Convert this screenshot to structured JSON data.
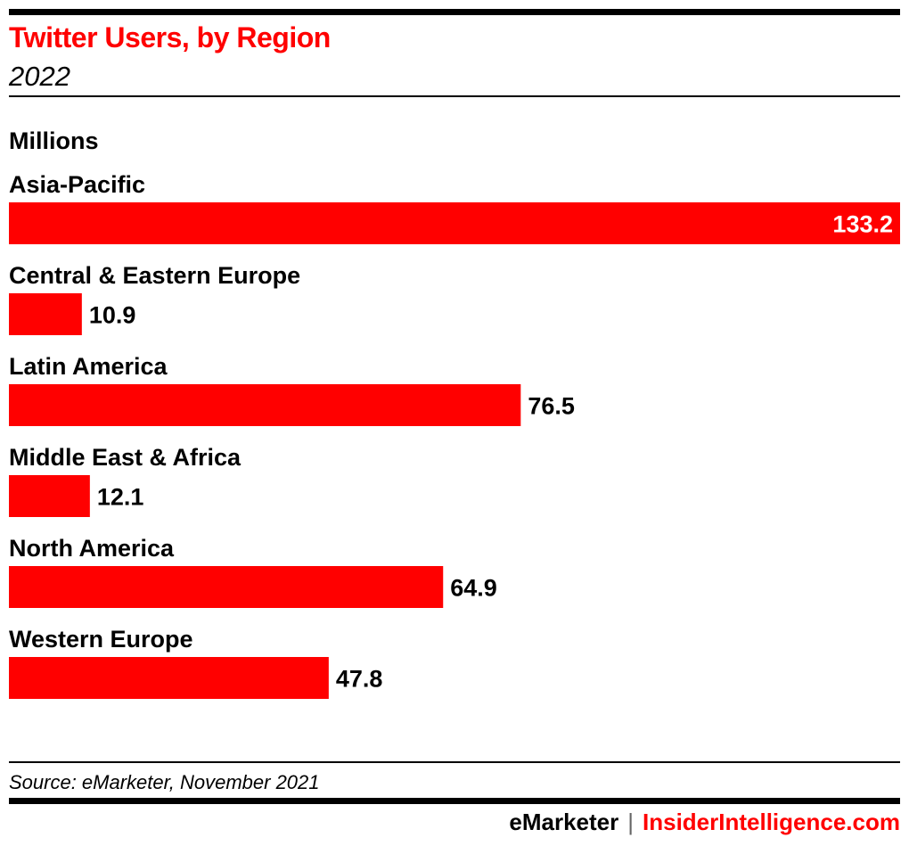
{
  "header": {
    "title": "Twitter Users, by Region",
    "subtitle": "2022",
    "unit": "Millions"
  },
  "footer": {
    "source": "Source: eMarketer, November 2021",
    "brand_left": "eMarketer",
    "brand_sep": "|",
    "brand_right": "InsiderIntelligence.com"
  },
  "colors": {
    "bar": "#ff0000",
    "title": "#ff0000",
    "inside_label": "#ffffff",
    "outside_label": "#000000"
  },
  "chart_data": {
    "type": "bar",
    "orientation": "horizontal",
    "title": "Twitter Users, by Region",
    "subtitle": "2022",
    "xlabel": "",
    "ylabel": "Millions",
    "categories": [
      "Asia-Pacific",
      "Central & Eastern Europe",
      "Latin America",
      "Middle East & Africa",
      "North America",
      "Western Europe"
    ],
    "values": [
      133.2,
      10.9,
      76.5,
      12.1,
      64.9,
      47.8
    ],
    "value_labels": [
      "133.2",
      "10.9",
      "76.5",
      "12.1",
      "64.9",
      "47.8"
    ],
    "xlim": [
      0,
      133.2
    ],
    "grid": false,
    "legend": "none"
  }
}
